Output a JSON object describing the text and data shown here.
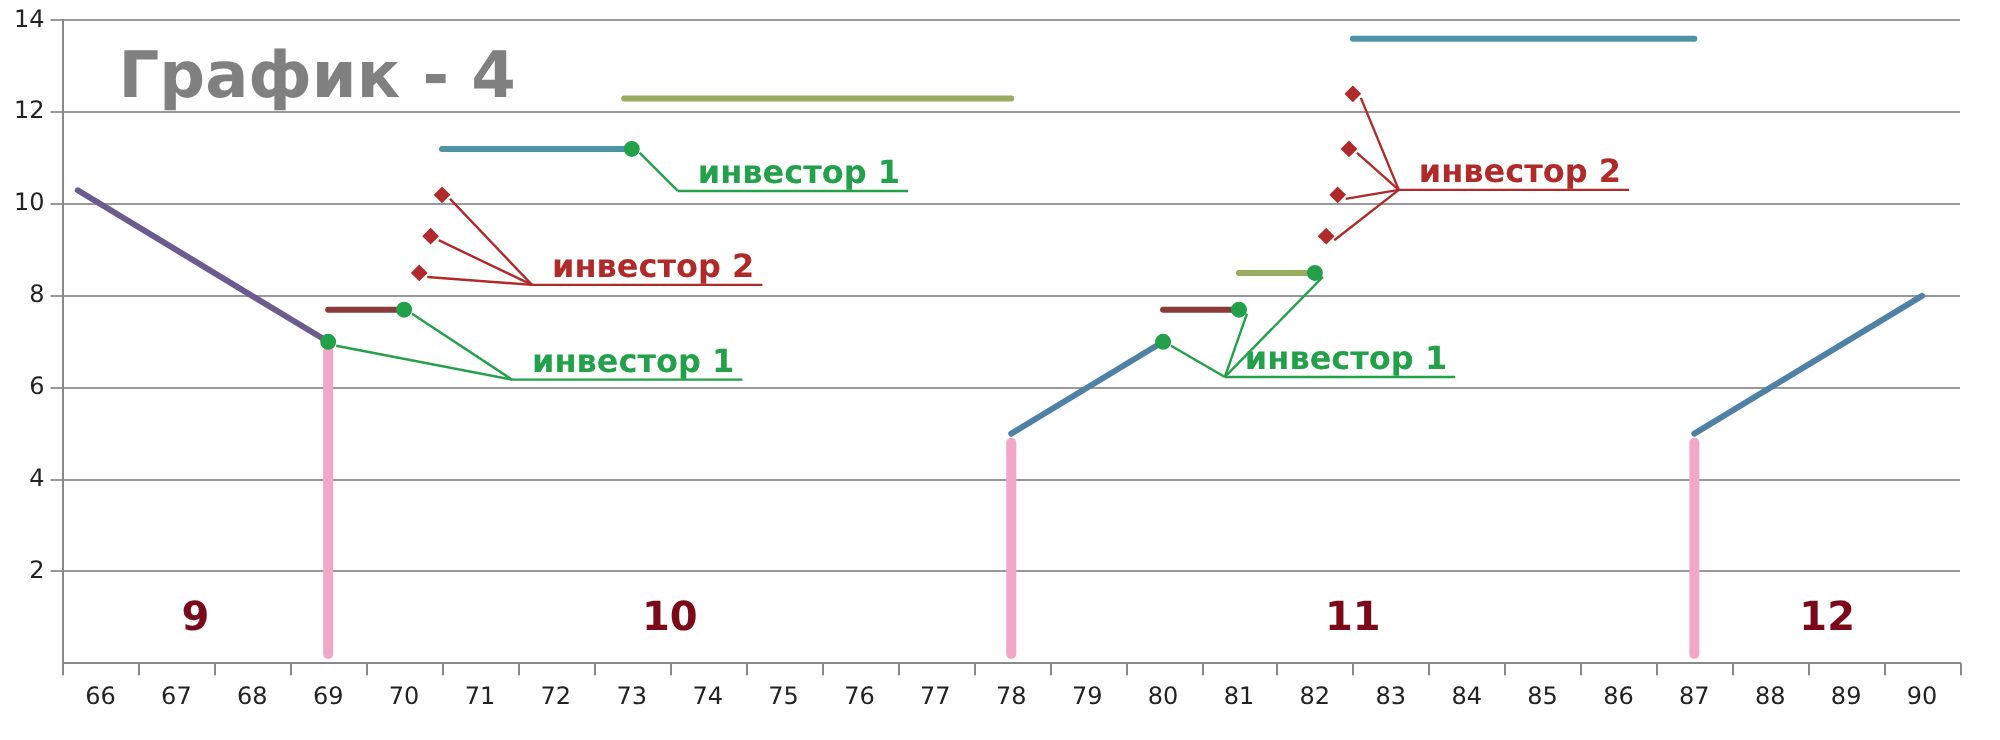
{
  "chart_data": {
    "type": "line",
    "title": "График - 4",
    "xlim": [
      65.5,
      90.5
    ],
    "xticks": [
      66,
      67,
      68,
      69,
      70,
      71,
      72,
      73,
      74,
      75,
      76,
      77,
      78,
      79,
      80,
      81,
      82,
      83,
      84,
      85,
      86,
      87,
      88,
      89,
      90
    ],
    "ylim": [
      0,
      14
    ],
    "yticks": [
      2,
      4,
      6,
      8,
      10,
      12,
      14
    ],
    "grid": "y",
    "legend": "top",
    "marker": "none",
    "annotations": [
      "9",
      "10",
      "11",
      "12"
    ],
    "series": [
      {
        "color": "#6b5b8e",
        "x": [
          65.7,
          69
        ],
        "values": [
          10.3,
          7.0
        ]
      },
      {
        "color": "#f2a7c6",
        "x": [
          69,
          69
        ],
        "values": [
          0.2,
          6.8
        ]
      },
      {
        "color": "#8b3a3a",
        "x": [
          69,
          70
        ],
        "values": [
          7.7,
          7.7
        ]
      },
      {
        "color": "#4e94a5",
        "x": [
          70.5,
          73
        ],
        "values": [
          11.2,
          11.2
        ]
      },
      {
        "color": "#9aab62",
        "x": [
          72.9,
          78
        ],
        "values": [
          12.3,
          12.3
        ]
      },
      {
        "color": "#f2a7c6",
        "x": [
          78,
          78
        ],
        "values": [
          0.2,
          4.8
        ]
      },
      {
        "color": "#4f81a6",
        "x": [
          78,
          80
        ],
        "values": [
          5.0,
          7.0
        ]
      },
      {
        "color": "#8b3a3a",
        "x": [
          80,
          81
        ],
        "values": [
          7.7,
          7.7
        ]
      },
      {
        "color": "#9aab62",
        "x": [
          81,
          82
        ],
        "values": [
          8.5,
          8.5
        ]
      },
      {
        "color": "#4e94a5",
        "x": [
          82.5,
          87
        ],
        "values": [
          13.6,
          13.6
        ]
      },
      {
        "color": "#f2a7c6",
        "x": [
          87,
          87
        ],
        "values": [
          0.2,
          4.8
        ]
      },
      {
        "color": "#4f81a6",
        "x": [
          87,
          90
        ],
        "values": [
          5.0,
          8.0
        ]
      },
      {
        "type": "scatter",
        "name": "инвестор 1",
        "color": "#22a04a",
        "marker": "circle",
        "x": [
          69,
          70
        ],
        "values": [
          7.0,
          7.7
        ]
      },
      {
        "type": "scatter",
        "name": "инвестор 1",
        "color": "#22a04a",
        "marker": "circle",
        "x": [
          73
        ],
        "values": [
          11.2
        ]
      },
      {
        "type": "scatter",
        "name": "инвестор 2",
        "color": "#b02a2a",
        "marker": "diamond",
        "x": [
          70.2,
          70.35,
          70.5
        ],
        "values": [
          8.5,
          9.3,
          10.2
        ]
      },
      {
        "type": "scatter",
        "name": "инвестор 1",
        "color": "#22a04a",
        "marker": "circle",
        "x": [
          80,
          81,
          82
        ],
        "values": [
          7.0,
          7.7,
          8.5
        ]
      },
      {
        "type": "scatter",
        "name": "инвестор 2",
        "color": "#b02a2a",
        "marker": "diamond",
        "x": [
          82.15,
          82.3,
          82.45,
          82.5
        ],
        "values": [
          9.3,
          10.2,
          11.2,
          12.4
        ]
      }
    ]
  }
}
